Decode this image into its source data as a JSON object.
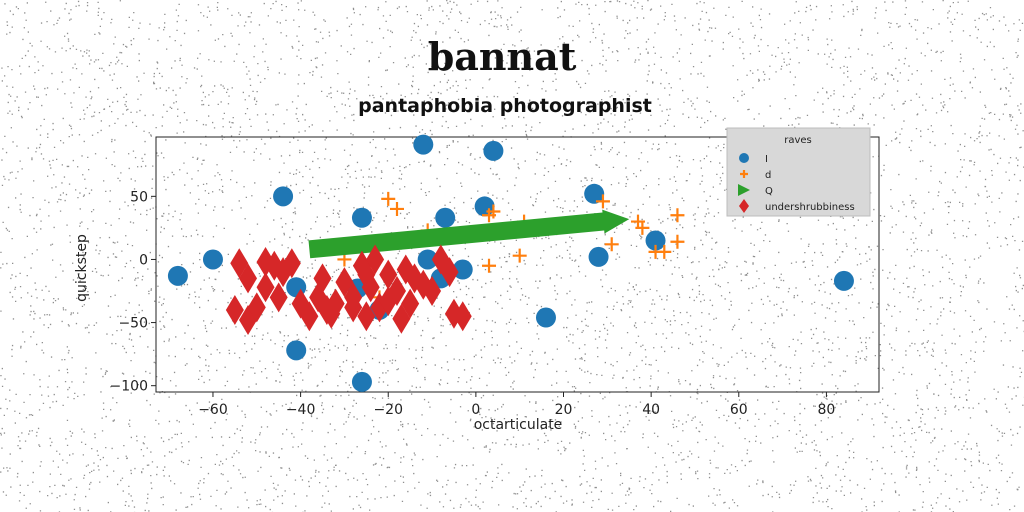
{
  "chart_data": {
    "type": "scatter",
    "title": "bannat",
    "subtitle": "pantaphobia photographist",
    "xlabel": "octarticulate",
    "ylabel": "quickstep",
    "xlim": [
      -73,
      92
    ],
    "ylim": [
      -105,
      97
    ],
    "xticks": [
      -60,
      -40,
      -20,
      0,
      20,
      40,
      60,
      80
    ],
    "yticks": [
      -100,
      -50,
      0,
      50
    ],
    "xtick_labels": [
      "−60",
      "−40",
      "−20",
      "0",
      "20",
      "40",
      "60",
      "80"
    ],
    "ytick_labels": [
      "−100",
      "−50",
      "0",
      "50"
    ],
    "grid": false,
    "legend": {
      "title": "raves",
      "placement": "top-right"
    },
    "series": [
      {
        "name": "I",
        "marker": "circle",
        "color": "#1f77b4",
        "points": [
          [
            -68,
            -13
          ],
          [
            -60,
            0
          ],
          [
            -44,
            50
          ],
          [
            -41,
            -22
          ],
          [
            -41,
            -72
          ],
          [
            -26,
            33
          ],
          [
            -26,
            -97
          ],
          [
            -27,
            -23
          ],
          [
            -22,
            -40
          ],
          [
            -12,
            91
          ],
          [
            -11,
            0
          ],
          [
            -7,
            33
          ],
          [
            -8,
            -15
          ],
          [
            -3,
            -8
          ],
          [
            2,
            42
          ],
          [
            4,
            86
          ],
          [
            16,
            -46
          ],
          [
            27,
            52
          ],
          [
            28,
            2
          ],
          [
            41,
            15
          ],
          [
            84,
            -17
          ]
        ]
      },
      {
        "name": "d",
        "marker": "plus",
        "color": "#ff7f0e",
        "points": [
          [
            -20,
            48
          ],
          [
            -18,
            40
          ],
          [
            -11,
            23
          ],
          [
            -30,
            0
          ],
          [
            -22,
            -30
          ],
          [
            3,
            35
          ],
          [
            4,
            38
          ],
          [
            3,
            -5
          ],
          [
            11,
            30
          ],
          [
            10,
            3
          ],
          [
            29,
            46
          ],
          [
            31,
            12
          ],
          [
            37,
            30
          ],
          [
            38,
            25
          ],
          [
            41,
            6
          ],
          [
            43,
            6
          ],
          [
            46,
            35
          ],
          [
            46,
            14
          ]
        ]
      },
      {
        "name": "Q",
        "marker": "arrow",
        "color": "#2ca02c",
        "arrow": {
          "x": -38,
          "y": 8,
          "dx": 73,
          "dy": 24
        }
      },
      {
        "name": "undershrubbiness",
        "marker": "diamond",
        "color": "#d62728",
        "points": [
          [
            -54,
            -3
          ],
          [
            -52,
            -15
          ],
          [
            -48,
            -2
          ],
          [
            -46,
            -5
          ],
          [
            -44,
            -10
          ],
          [
            -42,
            -3
          ],
          [
            -48,
            -22
          ],
          [
            -45,
            -30
          ],
          [
            -55,
            -40
          ],
          [
            -52,
            -48
          ],
          [
            -50,
            -38
          ],
          [
            -40,
            -35
          ],
          [
            -38,
            -45
          ],
          [
            -36,
            -30
          ],
          [
            -35,
            -15
          ],
          [
            -33,
            -43
          ],
          [
            -32,
            -35
          ],
          [
            -30,
            -18
          ],
          [
            -28,
            -38
          ],
          [
            -26,
            -5
          ],
          [
            -25,
            -12
          ],
          [
            -24,
            -22
          ],
          [
            -22,
            -38
          ],
          [
            -20,
            -33
          ],
          [
            -18,
            -25
          ],
          [
            -17,
            -47
          ],
          [
            -15,
            -35
          ],
          [
            -14,
            -15
          ],
          [
            -12,
            -20
          ],
          [
            -10,
            -25
          ],
          [
            -8,
            0
          ],
          [
            -6,
            -10
          ],
          [
            -5,
            -43
          ],
          [
            -3,
            -45
          ],
          [
            -25,
            -45
          ],
          [
            -23,
            0
          ],
          [
            -20,
            -12
          ],
          [
            -16,
            -8
          ],
          [
            -28,
            -30
          ],
          [
            -34,
            -40
          ]
        ]
      }
    ]
  }
}
